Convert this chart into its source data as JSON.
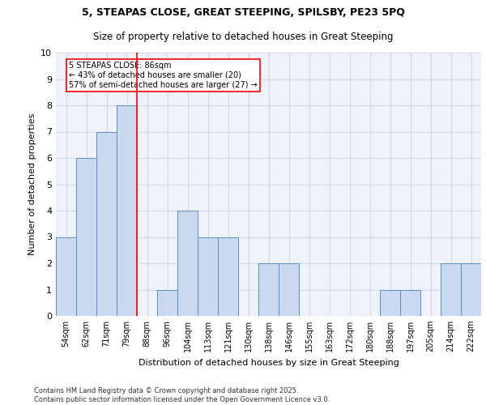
{
  "title_line1": "5, STEAPAS CLOSE, GREAT STEEPING, SPILSBY, PE23 5PQ",
  "title_line2": "Size of property relative to detached houses in Great Steeping",
  "xlabel": "Distribution of detached houses by size in Great Steeping",
  "ylabel": "Number of detached properties",
  "footnote1": "Contains HM Land Registry data © Crown copyright and database right 2025.",
  "footnote2": "Contains public sector information licensed under the Open Government Licence v3.0.",
  "bar_labels": [
    "54sqm",
    "62sqm",
    "71sqm",
    "79sqm",
    "88sqm",
    "96sqm",
    "104sqm",
    "113sqm",
    "121sqm",
    "130sqm",
    "138sqm",
    "146sqm",
    "155sqm",
    "163sqm",
    "172sqm",
    "180sqm",
    "188sqm",
    "197sqm",
    "205sqm",
    "214sqm",
    "222sqm"
  ],
  "bar_values": [
    3,
    6,
    7,
    8,
    0,
    1,
    4,
    3,
    3,
    0,
    2,
    2,
    0,
    0,
    0,
    0,
    1,
    1,
    0,
    2,
    2
  ],
  "bar_color": "#c9d9f0",
  "bar_edge_color": "#5b8ec5",
  "grid_color": "#d0d8e8",
  "background_color": "#eef2fa",
  "red_line_index": 4,
  "annotation_text": "5 STEAPAS CLOSE: 86sqm\n← 43% of detached houses are smaller (20)\n57% of semi-detached houses are larger (27) →",
  "annotation_box_color": "white",
  "annotation_box_edge": "red",
  "ylim": [
    0,
    10
  ],
  "yticks": [
    0,
    1,
    2,
    3,
    4,
    5,
    6,
    7,
    8,
    9,
    10
  ]
}
